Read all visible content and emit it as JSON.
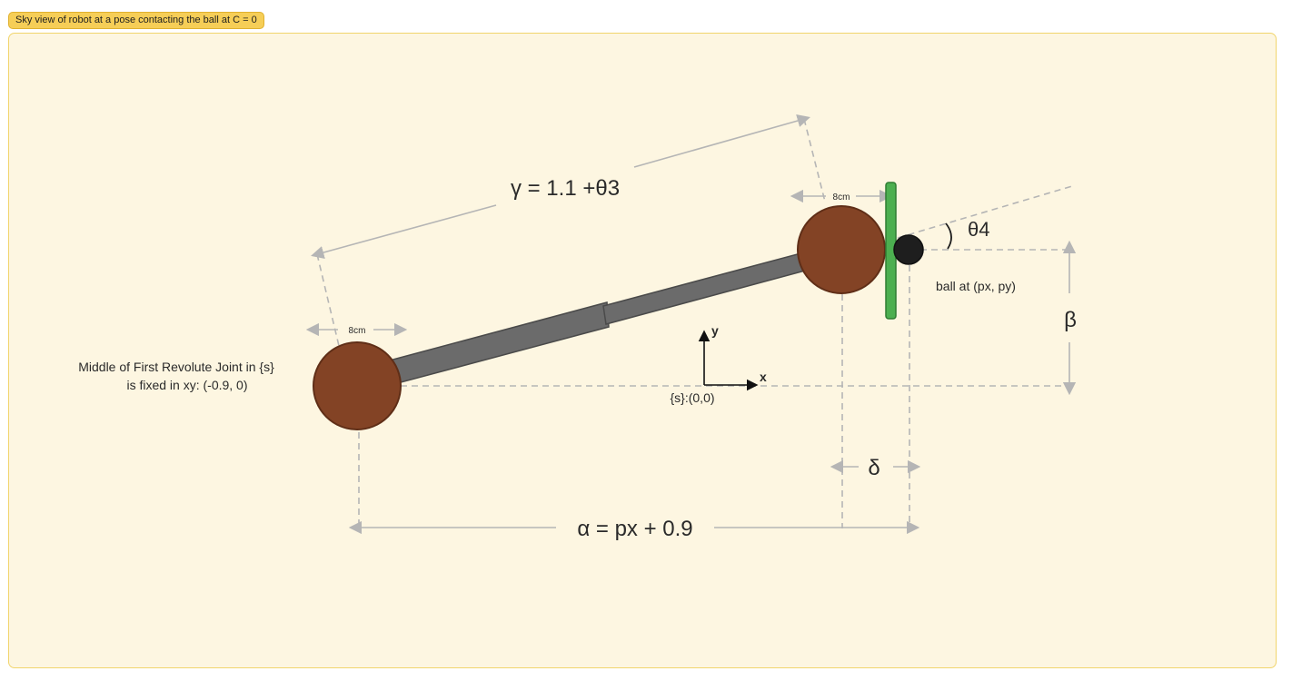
{
  "frame": {
    "title": "Sky view of robot at a pose contacting the ball at C = 0"
  },
  "labels": {
    "gamma": "γ = 1.1 +θ3",
    "alpha": "α = px + 0.9",
    "beta": "β",
    "delta": "δ",
    "theta4": "θ4",
    "ball": "ball at (px, py)",
    "origin": "{s}:(0,0)",
    "axis_x": "x",
    "axis_y": "y",
    "dim_left": "8cm",
    "dim_right": "8cm",
    "joint_note_line1": "Middle of First Revolute Joint in {s}",
    "joint_note_line2": "is fixed in xy: (-0.9, 0)"
  },
  "colors": {
    "frame_fill": "#fdf6e1",
    "frame_border": "#f1d56d",
    "tag_fill": "#f6ce57",
    "joint": "#834325",
    "link": "#6b6b6b",
    "paddle": "#4caf50",
    "ball": "#1e1e1e",
    "dimension": "#b5b5b5"
  }
}
